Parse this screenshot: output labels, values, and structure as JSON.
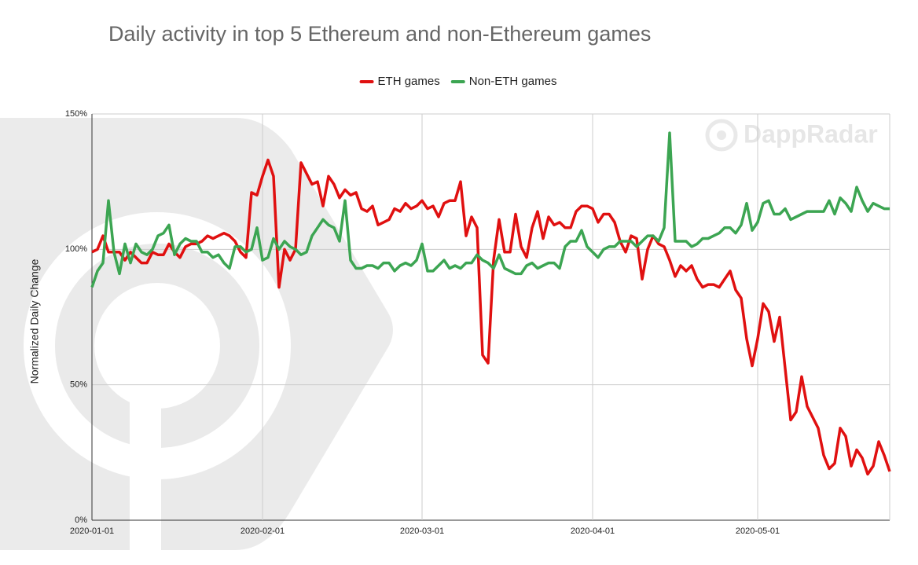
{
  "chart_data": {
    "type": "line",
    "title": "Daily activity in top 5 Ethereum and non-Ethereum games",
    "y_label": "Normalized Daily Change",
    "watermark": "DappRadar",
    "legend_position": "top",
    "grid": true,
    "x": [
      "2020-01-01",
      "2020-01-02",
      "2020-01-03",
      "2020-01-04",
      "2020-01-05",
      "2020-01-06",
      "2020-01-07",
      "2020-01-08",
      "2020-01-09",
      "2020-01-10",
      "2020-01-11",
      "2020-01-12",
      "2020-01-13",
      "2020-01-14",
      "2020-01-15",
      "2020-01-16",
      "2020-01-17",
      "2020-01-18",
      "2020-01-19",
      "2020-01-20",
      "2020-01-21",
      "2020-01-22",
      "2020-01-23",
      "2020-01-24",
      "2020-01-25",
      "2020-01-26",
      "2020-01-27",
      "2020-01-28",
      "2020-01-29",
      "2020-01-30",
      "2020-01-31",
      "2020-02-01",
      "2020-02-02",
      "2020-02-03",
      "2020-02-04",
      "2020-02-05",
      "2020-02-06",
      "2020-02-07",
      "2020-02-08",
      "2020-02-09",
      "2020-02-10",
      "2020-02-11",
      "2020-02-12",
      "2020-02-13",
      "2020-02-14",
      "2020-02-15",
      "2020-02-16",
      "2020-02-17",
      "2020-02-18",
      "2020-02-19",
      "2020-02-20",
      "2020-02-21",
      "2020-02-22",
      "2020-02-23",
      "2020-02-24",
      "2020-02-25",
      "2020-02-26",
      "2020-02-27",
      "2020-02-28",
      "2020-02-29",
      "2020-03-01",
      "2020-03-02",
      "2020-03-03",
      "2020-03-04",
      "2020-03-05",
      "2020-03-06",
      "2020-03-07",
      "2020-03-08",
      "2020-03-09",
      "2020-03-10",
      "2020-03-11",
      "2020-03-12",
      "2020-03-13",
      "2020-03-14",
      "2020-03-15",
      "2020-03-16",
      "2020-03-17",
      "2020-03-18",
      "2020-03-19",
      "2020-03-20",
      "2020-03-21",
      "2020-03-22",
      "2020-03-23",
      "2020-03-24",
      "2020-03-25",
      "2020-03-26",
      "2020-03-27",
      "2020-03-28",
      "2020-03-29",
      "2020-03-30",
      "2020-03-31",
      "2020-04-01",
      "2020-04-02",
      "2020-04-03",
      "2020-04-04",
      "2020-04-05",
      "2020-04-06",
      "2020-04-07",
      "2020-04-08",
      "2020-04-09",
      "2020-04-10",
      "2020-04-11",
      "2020-04-12",
      "2020-04-13",
      "2020-04-14",
      "2020-04-15",
      "2020-04-16",
      "2020-04-17",
      "2020-04-18",
      "2020-04-19",
      "2020-04-20",
      "2020-04-21",
      "2020-04-22",
      "2020-04-23",
      "2020-04-24",
      "2020-04-25",
      "2020-04-26",
      "2020-04-27",
      "2020-04-28",
      "2020-04-29",
      "2020-04-30",
      "2020-05-01",
      "2020-05-02",
      "2020-05-03",
      "2020-05-04",
      "2020-05-05",
      "2020-05-06",
      "2020-05-07",
      "2020-05-08",
      "2020-05-09",
      "2020-05-10",
      "2020-05-11",
      "2020-05-12",
      "2020-05-13",
      "2020-05-14",
      "2020-05-15",
      "2020-05-16",
      "2020-05-17",
      "2020-05-18",
      "2020-05-19",
      "2020-05-20",
      "2020-05-21",
      "2020-05-22",
      "2020-05-23",
      "2020-05-24",
      "2020-05-25"
    ],
    "xlim": [
      "2020-01-01",
      "2020-05-25"
    ],
    "xticks": [
      "2020-01-01",
      "2020-02-01",
      "2020-03-01",
      "2020-04-01",
      "2020-05-01"
    ],
    "ylim": [
      0,
      150
    ],
    "yticks": [
      {
        "value": 0,
        "label": "0%"
      },
      {
        "value": 50,
        "label": "50%"
      },
      {
        "value": 100,
        "label": "100%"
      },
      {
        "value": 150,
        "label": "150%"
      }
    ],
    "series": [
      {
        "name": "ETH games",
        "color": "#e01010",
        "values": [
          99,
          100,
          105,
          99,
          99,
          99,
          96,
          99,
          97,
          95,
          95,
          99,
          98,
          98,
          102,
          99,
          97,
          101,
          102,
          102,
          103,
          105,
          104,
          105,
          106,
          105,
          103,
          99,
          97,
          121,
          120,
          127,
          133,
          127,
          86,
          100,
          96,
          100,
          132,
          128,
          124,
          125,
          116,
          127,
          124,
          119,
          122,
          120,
          121,
          115,
          114,
          116,
          109,
          110,
          111,
          115,
          114,
          117,
          115,
          116,
          118,
          115,
          116,
          112,
          117,
          118,
          118,
          125,
          105,
          112,
          108,
          61,
          58,
          96,
          111,
          99,
          99,
          113,
          101,
          97,
          108,
          114,
          104,
          112,
          109,
          110,
          108,
          108,
          114,
          116,
          116,
          115,
          110,
          113,
          113,
          110,
          103,
          99,
          105,
          104,
          89,
          100,
          105,
          102,
          101,
          96,
          90,
          94,
          92,
          94,
          89,
          86,
          87,
          87,
          86,
          89,
          92,
          85,
          82,
          67,
          57,
          67,
          80,
          77,
          66,
          75,
          56,
          37,
          40,
          53,
          42,
          38,
          34,
          24,
          19,
          21,
          34,
          31,
          20,
          26,
          23,
          17,
          20,
          29,
          24,
          18
        ]
      },
      {
        "name": "Non-ETH games",
        "color": "#3ca552",
        "values": [
          86,
          92,
          95,
          118,
          99,
          91,
          102,
          95,
          102,
          99,
          98,
          100,
          105,
          106,
          109,
          98,
          102,
          104,
          103,
          103,
          99,
          99,
          97,
          98,
          95,
          93,
          101,
          101,
          99,
          100,
          108,
          96,
          97,
          104,
          100,
          103,
          101,
          100,
          98,
          99,
          105,
          108,
          111,
          109,
          108,
          103,
          118,
          96,
          93,
          93,
          94,
          94,
          93,
          95,
          95,
          92,
          94,
          95,
          94,
          96,
          102,
          92,
          92,
          94,
          96,
          93,
          94,
          93,
          95,
          95,
          98,
          96,
          95,
          93,
          98,
          93,
          92,
          91,
          91,
          94,
          95,
          93,
          94,
          95,
          95,
          93,
          101,
          103,
          103,
          107,
          101,
          99,
          97,
          100,
          101,
          101,
          103,
          103,
          103,
          101,
          103,
          105,
          105,
          103,
          108,
          143,
          103,
          103,
          103,
          101,
          102,
          104,
          104,
          105,
          106,
          108,
          108,
          106,
          109,
          117,
          107,
          110,
          117,
          118,
          113,
          113,
          115,
          111,
          112,
          113,
          114,
          114,
          114,
          114,
          118,
          113,
          119,
          117,
          114,
          123,
          118,
          114,
          117,
          116,
          115,
          115
        ]
      }
    ]
  }
}
